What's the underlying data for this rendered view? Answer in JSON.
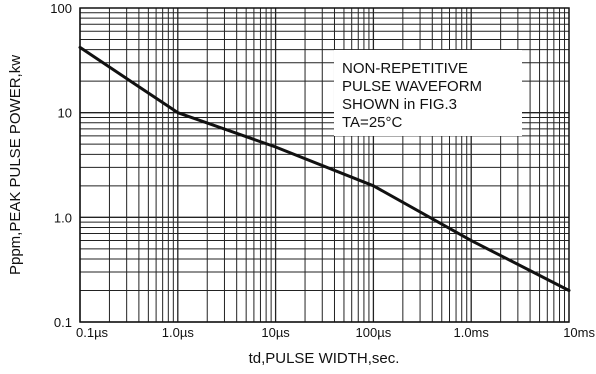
{
  "chart_data": {
    "type": "line",
    "x_scale": "log",
    "y_scale": "log",
    "xlabel": "td,PULSE WIDTH,sec.",
    "ylabel": "Pppm,PEAK PULSE POWER,kw",
    "xlim_seconds": [
      1e-07,
      0.01
    ],
    "ylim": [
      0.1,
      100
    ],
    "x_ticks": [
      {
        "value": 1e-07,
        "label": "0.1µs"
      },
      {
        "value": 1e-06,
        "label": "1.0µs"
      },
      {
        "value": 1e-05,
        "label": "10µs"
      },
      {
        "value": 0.0001,
        "label": "100µs"
      },
      {
        "value": 0.001,
        "label": "1.0ms"
      },
      {
        "value": 0.01,
        "label": "10ms"
      }
    ],
    "y_ticks": [
      {
        "value": 0.1,
        "label": "0.1"
      },
      {
        "value": 1,
        "label": "1.0"
      },
      {
        "value": 10,
        "label": "10"
      },
      {
        "value": 100,
        "label": "100"
      }
    ],
    "grid": true,
    "series": [
      {
        "x_seconds": [
          1e-07,
          1e-06,
          1e-05,
          0.0001,
          0.001,
          0.01
        ],
        "y": [
          42,
          10,
          4.7,
          2.0,
          0.6,
          0.2
        ]
      }
    ],
    "annotation_lines": [
      "NON-REPETITIVE",
      "PULSE WAVEFORM",
      "SHOWN in FIG.3",
      "TA=25°C"
    ]
  },
  "colors": {
    "line": "#111111",
    "grid": "#222222",
    "background": "#ffffff"
  }
}
